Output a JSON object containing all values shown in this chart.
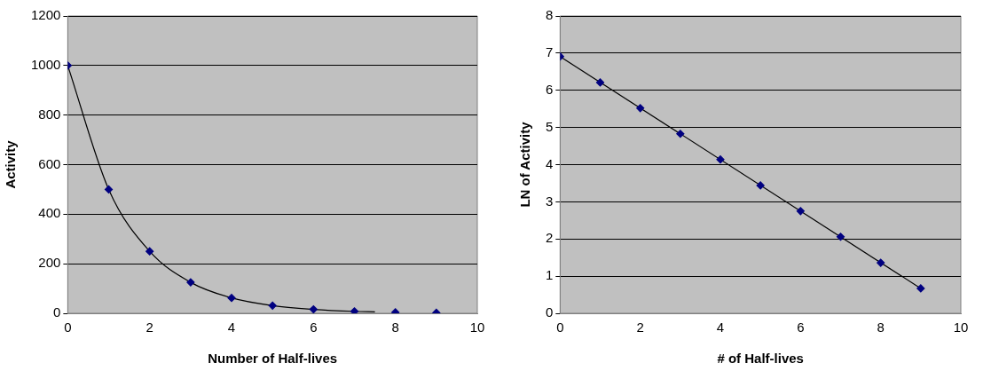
{
  "chart_data": [
    {
      "type": "scatter",
      "xlabel": "Number of Half-lives",
      "ylabel": "Activity",
      "xlim": [
        0,
        10
      ],
      "ylim": [
        0,
        1200
      ],
      "xticks": [
        0,
        2,
        4,
        6,
        8,
        10
      ],
      "yticks": [
        0,
        200,
        400,
        600,
        800,
        1000,
        1200
      ],
      "grid": "y",
      "legend": false,
      "series": [
        {
          "type": "scatter",
          "color": "#000080",
          "marker": "diamond",
          "x": [
            0,
            1,
            2,
            3,
            4,
            5,
            6,
            7,
            8,
            9
          ],
          "values": [
            1000,
            500,
            250,
            125,
            62,
            31,
            16,
            8,
            4,
            2
          ]
        },
        {
          "type": "line",
          "color": "#000000",
          "marker": "none",
          "x": [
            0,
            1,
            2,
            3,
            4,
            5,
            6,
            7,
            7.5
          ],
          "values": [
            1000,
            500,
            250,
            125,
            62,
            31,
            16,
            8,
            6
          ]
        }
      ]
    },
    {
      "type": "scatter",
      "xlabel": "# of Half-lives",
      "ylabel": "LN of Activity",
      "xlim": [
        0,
        10
      ],
      "ylim": [
        0,
        8
      ],
      "xticks": [
        0,
        2,
        4,
        6,
        8,
        10
      ],
      "yticks": [
        0,
        1,
        2,
        3,
        4,
        5,
        6,
        7,
        8
      ],
      "grid": "y",
      "legend": false,
      "series": [
        {
          "type": "scatter",
          "color": "#000080",
          "marker": "diamond",
          "x": [
            0,
            1,
            2,
            3,
            4,
            5,
            6,
            7,
            8,
            9
          ],
          "values": [
            6.91,
            6.21,
            5.52,
            4.83,
            4.14,
            3.44,
            2.75,
            2.06,
            1.36,
            0.67
          ]
        },
        {
          "type": "line",
          "color": "#000000",
          "marker": "none",
          "x": [
            0,
            9
          ],
          "values": [
            6.91,
            0.67
          ]
        }
      ]
    }
  ]
}
